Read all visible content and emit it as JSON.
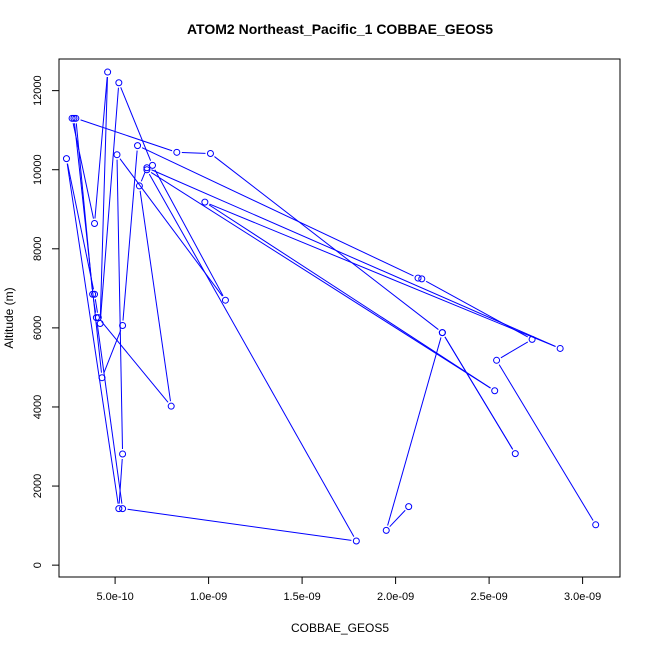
{
  "chart_data": {
    "type": "line",
    "title": "ATOM2 Northeast_Pacific_1 COBBAE_GEOS5",
    "xlabel": "COBBAE_GEOS5",
    "ylabel": "Altitude (m)",
    "xlim": [
      2e-10,
      3.2e-09
    ],
    "ylim": [
      -300,
      12800
    ],
    "x_ticks": [
      5e-10,
      1e-09,
      1.5e-09,
      2e-09,
      2.5e-09,
      3e-09
    ],
    "x_tick_labels": [
      "5.0e-10",
      "1.0e-09",
      "1.5e-09",
      "2.0e-09",
      "2.5e-09",
      "3.0e-09"
    ],
    "y_ticks": [
      0,
      2000,
      4000,
      6000,
      8000,
      10000,
      12000
    ],
    "y_tick_labels": [
      "0",
      "2000",
      "4000",
      "6000",
      "8000",
      "10000",
      "12000"
    ],
    "grid": false,
    "line_color": "#0000ff",
    "marker": "open-circle",
    "series": [
      {
        "x": [
          3.07e-09,
          2.54e-09,
          2.73e-09,
          2.14e-09,
          2.12e-09,
          6.2e-10,
          5.4e-10,
          4.3e-10,
          2.8e-10,
          2.7e-10,
          3.9e-10,
          4.6e-10,
          4.2e-10,
          5.2e-10,
          7e-10,
          1.09e-09,
          5.1e-10,
          5.4e-10,
          5.2e-10,
          2.4e-10,
          3.9e-10,
          4.1e-10,
          8e-10,
          6.3e-10,
          6.7e-10,
          2.88e-09,
          9.8e-10,
          2.53e-09,
          6.7e-10,
          1.79e-09,
          5.4e-10,
          4e-10,
          3.8e-10,
          2.9e-10,
          8.3e-10,
          1.01e-09,
          2.25e-09,
          2.64e-09,
          2.25e-09,
          1.95e-09,
          2.07e-09
        ],
        "y": [
          1020,
          5180,
          5710,
          7240,
          7260,
          10610,
          6060,
          4740,
          11300,
          11300,
          8640,
          12470,
          6110,
          12200,
          10110,
          6700,
          10380,
          2810,
          1430,
          10280,
          6850,
          6260,
          4020,
          9590,
          10050,
          5480,
          9180,
          4410,
          10000,
          610,
          1430,
          6260,
          6850,
          11300,
          10440,
          10410,
          5880,
          2820,
          5880,
          880,
          1480
        ]
      }
    ]
  }
}
